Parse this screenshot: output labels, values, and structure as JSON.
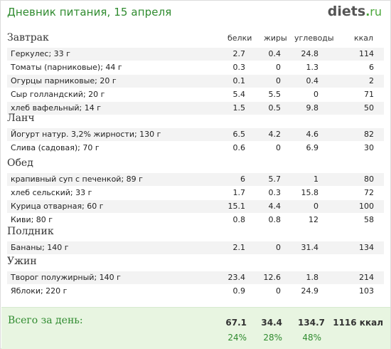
{
  "header": {
    "title": "Дневник питания, 15 апреля",
    "logo_main": "diets",
    "logo_dot": ".",
    "logo_tld": "ru"
  },
  "columns": {
    "protein": "белки",
    "fat": "жиры",
    "carbs": "углеводы",
    "kcal": "ккал"
  },
  "meals": [
    {
      "title": "Завтрак",
      "items": [
        {
          "name": "Геркулес; 33 г",
          "protein": "2.7",
          "fat": "0.4",
          "carbs": "24.8",
          "kcal": "114"
        },
        {
          "name": "Томаты (парниковые); 44 г",
          "protein": "0.3",
          "fat": "0",
          "carbs": "1.3",
          "kcal": "6"
        },
        {
          "name": "Огурцы парниковые; 20 г",
          "protein": "0.1",
          "fat": "0",
          "carbs": "0.4",
          "kcal": "2"
        },
        {
          "name": "Сыр голландский; 20 г",
          "protein": "5.4",
          "fat": "5.5",
          "carbs": "0",
          "kcal": "71"
        },
        {
          "name": "хлеб вафельный; 14 г",
          "protein": "1.5",
          "fat": "0.5",
          "carbs": "9.8",
          "kcal": "50"
        }
      ]
    },
    {
      "title": "Ланч",
      "items": [
        {
          "name": "Йогурт натур. 3,2% жирности; 130 г",
          "protein": "6.5",
          "fat": "4.2",
          "carbs": "4.6",
          "kcal": "82"
        },
        {
          "name": "Слива (садовая); 70 г",
          "protein": "0.6",
          "fat": "0",
          "carbs": "6.9",
          "kcal": "30"
        }
      ]
    },
    {
      "title": "Обед",
      "items": [
        {
          "name": "крапивный суп с печенкой; 89 г",
          "protein": "6",
          "fat": "5.7",
          "carbs": "1",
          "kcal": "80"
        },
        {
          "name": "хлеб сельский; 33 г",
          "protein": "1.7",
          "fat": "0.3",
          "carbs": "15.8",
          "kcal": "72"
        },
        {
          "name": "Курица отварная; 60 г",
          "protein": "15.1",
          "fat": "4.4",
          "carbs": "0",
          "kcal": "100"
        },
        {
          "name": "Киви; 80 г",
          "protein": "0.8",
          "fat": "0.8",
          "carbs": "12",
          "kcal": "58"
        }
      ]
    },
    {
      "title": "Полдник",
      "items": [
        {
          "name": "Бананы; 140 г",
          "protein": "2.1",
          "fat": "0",
          "carbs": "31.4",
          "kcal": "134"
        }
      ]
    },
    {
      "title": "Ужин",
      "items": [
        {
          "name": "Творог полужирный; 140 г",
          "protein": "23.4",
          "fat": "12.6",
          "carbs": "1.8",
          "kcal": "214"
        },
        {
          "name": "Яблоки; 220 г",
          "protein": "0.9",
          "fat": "0",
          "carbs": "24.9",
          "kcal": "103"
        }
      ]
    }
  ],
  "totals": {
    "label": "Всего за день:",
    "protein": "67.1",
    "fat": "34.4",
    "carbs": "134.7",
    "kcal": "1116 ккал",
    "protein_pct": "24%",
    "fat_pct": "28%",
    "carbs_pct": "48%"
  }
}
